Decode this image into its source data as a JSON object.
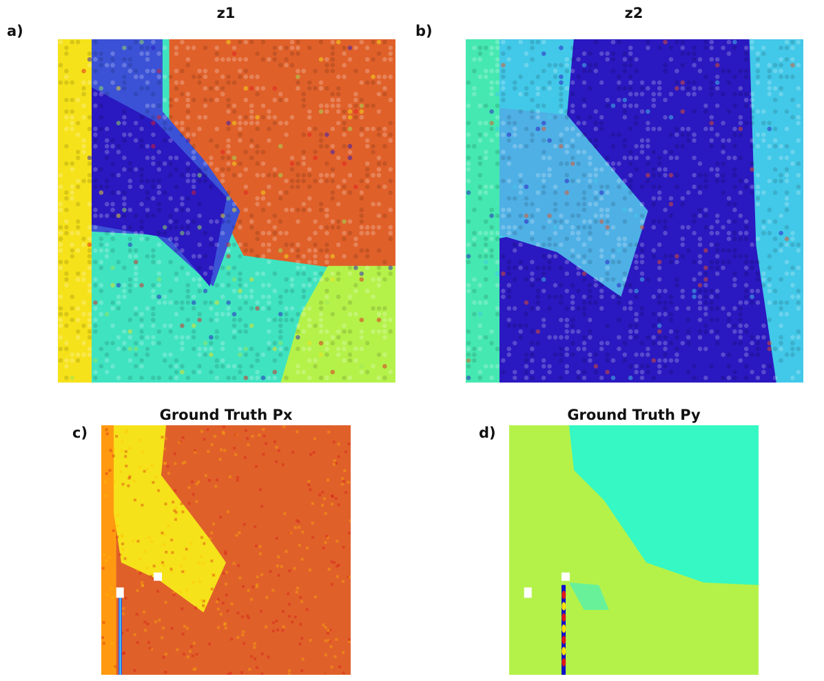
{
  "chart_data": [
    {
      "type": "heatmap",
      "panel_label": "a)",
      "title": "z1",
      "style": "scatter-dots",
      "colormap": "jet",
      "axes": "off",
      "regions": {
        "left_strip": "yellow",
        "upper_left_band": "blue",
        "upper_right_domain": "orange-red",
        "diagonal_wedge": "dark-blue",
        "lower_domain": "cyan-green",
        "bottom_right": "yellow-green"
      }
    },
    {
      "type": "heatmap",
      "panel_label": "b)",
      "title": "z2",
      "style": "scatter-dots",
      "colormap": "jet",
      "axes": "off",
      "regions": {
        "left_strip": "green-cyan",
        "upper_left_band": "cyan",
        "upper_right_domain": "dark-blue",
        "diagonal_wedge": "light-blue",
        "lower_domain": "dark-blue",
        "right_edge": "cyan"
      }
    },
    {
      "type": "heatmap",
      "panel_label": "c)",
      "title": "Ground Truth Px",
      "style": "image",
      "colormap": "jet",
      "axes": "off",
      "regions": {
        "background": "orange-red",
        "diagonal_wedge": "yellow",
        "left_edge": "orange",
        "vertical_line": "blue"
      }
    },
    {
      "type": "heatmap",
      "panel_label": "d)",
      "title": "Ground Truth Py",
      "style": "image",
      "colormap": "jet",
      "axes": "off",
      "regions": {
        "upper_right_domain": "aquamarine",
        "diagonal_wedge": "yellow-green",
        "lower_domain": "yellow-green",
        "vertical_line": "red-blue"
      }
    }
  ]
}
